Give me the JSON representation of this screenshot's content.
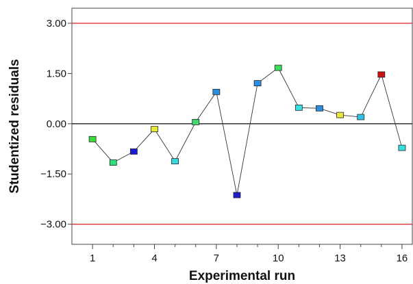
{
  "chart_data": {
    "type": "scatter",
    "xlabel": "Experimental run",
    "ylabel": "Studentized residuals",
    "xlim": [
      0,
      16.5
    ],
    "ylim": [
      -3.6,
      3.45
    ],
    "x_ticks": [
      1,
      4,
      7,
      10,
      13,
      16
    ],
    "y_ticks": [
      3.0,
      1.5,
      0.0,
      -1.5,
      -3.0
    ],
    "y_tick_labels": [
      "3.00",
      "1.50",
      "0.00",
      "−1.50",
      "−3.00"
    ],
    "reference_lines": [
      {
        "value": 3.0,
        "color": "#e02020"
      },
      {
        "value": -3.0,
        "color": "#e02020"
      },
      {
        "value": 0.0,
        "color": "#222222"
      }
    ],
    "grid": false,
    "connected": true,
    "series": [
      {
        "points": [
          {
            "x": 1,
            "y": -0.46,
            "color": "#3ddc3d"
          },
          {
            "x": 2,
            "y": -1.16,
            "color": "#2ee07a"
          },
          {
            "x": 3,
            "y": -0.83,
            "color": "#1a1ad8"
          },
          {
            "x": 4,
            "y": -0.16,
            "color": "#e8e83a"
          },
          {
            "x": 5,
            "y": -1.12,
            "color": "#35d7e0"
          },
          {
            "x": 6,
            "y": 0.05,
            "color": "#3ed96b"
          },
          {
            "x": 7,
            "y": 0.95,
            "color": "#2a8fe0"
          },
          {
            "x": 8,
            "y": -2.13,
            "color": "#1f1fc8"
          },
          {
            "x": 9,
            "y": 1.21,
            "color": "#2a8fe0"
          },
          {
            "x": 10,
            "y": 1.67,
            "color": "#3ddc5a"
          },
          {
            "x": 11,
            "y": 0.48,
            "color": "#35e0e0"
          },
          {
            "x": 12,
            "y": 0.46,
            "color": "#2a8fe0"
          },
          {
            "x": 13,
            "y": 0.26,
            "color": "#e8e83a"
          },
          {
            "x": 14,
            "y": 0.2,
            "color": "#35c0e8"
          },
          {
            "x": 15,
            "y": 1.47,
            "color": "#cc1111"
          },
          {
            "x": 16,
            "y": -0.72,
            "color": "#35e0e0"
          }
        ]
      }
    ]
  }
}
